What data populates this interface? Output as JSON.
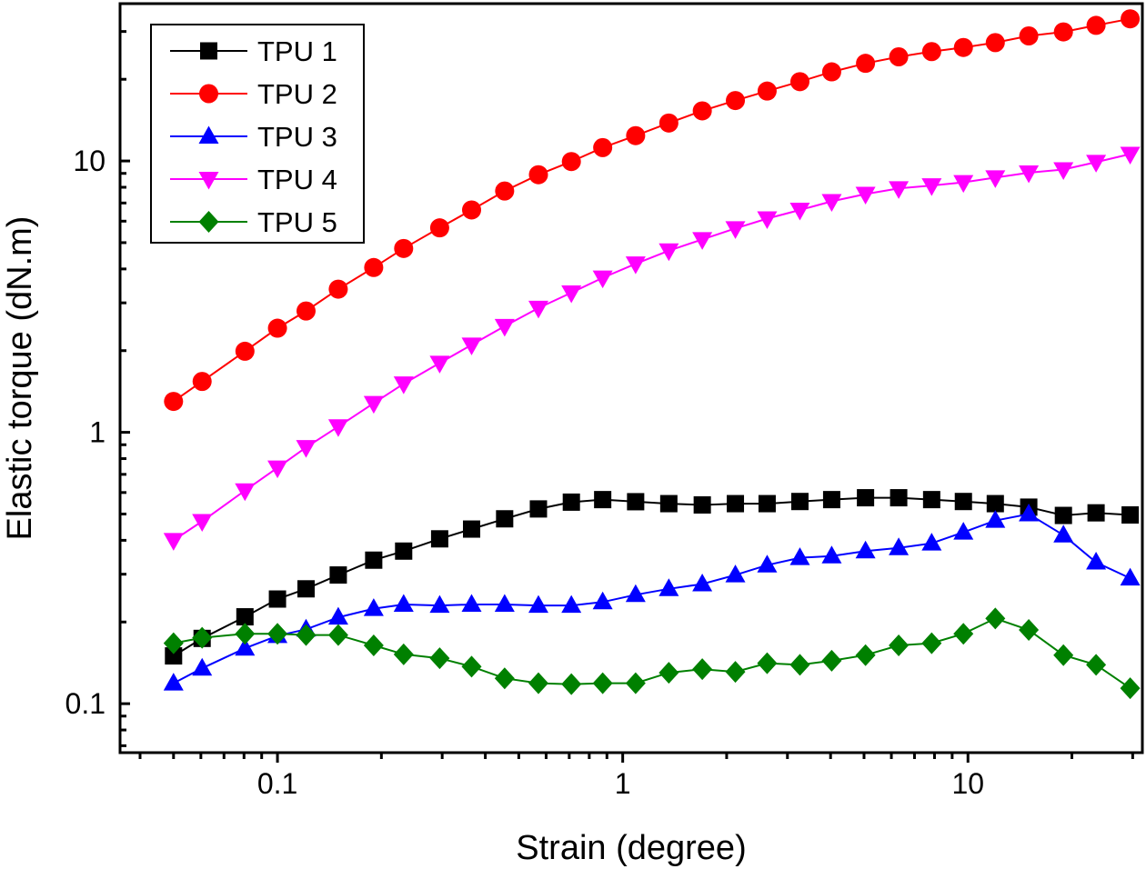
{
  "chart_data": {
    "type": "line",
    "title": "",
    "xlabel": "Strain (degree)",
    "ylabel": "Elastic torque (dN.m)",
    "xscale": "log",
    "yscale": "log",
    "xlim": [
      0.035,
      32
    ],
    "ylim": [
      0.066,
      38
    ],
    "x_ticks": [
      0.1,
      1,
      10
    ],
    "x_tick_labels": [
      "0.1",
      "1",
      "10"
    ],
    "y_ticks": [
      0.1,
      1,
      10
    ],
    "y_tick_labels": [
      "0.1",
      "1",
      "10"
    ],
    "legend_position": "top-left",
    "x": [
      0.05,
      0.0605,
      0.0805,
      0.1,
      0.121,
      0.15,
      0.19,
      0.232,
      0.295,
      0.365,
      0.455,
      0.57,
      0.71,
      0.875,
      1.09,
      1.36,
      1.7,
      2.12,
      2.62,
      3.26,
      4.03,
      5.05,
      6.3,
      7.85,
      9.7,
      12,
      15,
      18.9,
      23.5,
      29.5
    ],
    "series": [
      {
        "name": "TPU 1",
        "color": "#000000",
        "marker": "square",
        "values": [
          0.15,
          0.174,
          0.209,
          0.243,
          0.265,
          0.298,
          0.338,
          0.365,
          0.405,
          0.44,
          0.48,
          0.522,
          0.553,
          0.565,
          0.555,
          0.546,
          0.54,
          0.546,
          0.546,
          0.556,
          0.565,
          0.574,
          0.574,
          0.565,
          0.556,
          0.546,
          0.53,
          0.494,
          0.505,
          0.496
        ]
      },
      {
        "name": "TPU 2",
        "color": "#ff0000",
        "marker": "circle",
        "values": [
          1.3,
          1.54,
          1.99,
          2.42,
          2.8,
          3.37,
          4.05,
          4.76,
          5.67,
          6.6,
          7.75,
          8.9,
          9.95,
          11.2,
          12.4,
          13.8,
          15.3,
          16.7,
          18.1,
          19.6,
          21.3,
          22.9,
          24.2,
          25.3,
          26.2,
          27.3,
          28.9,
          29.9,
          31.6,
          33.4
        ]
      },
      {
        "name": "TPU 3",
        "color": "#0000ff",
        "marker": "triangle-up",
        "values": [
          0.119,
          0.135,
          0.16,
          0.178,
          0.188,
          0.208,
          0.224,
          0.232,
          0.23,
          0.232,
          0.232,
          0.23,
          0.23,
          0.237,
          0.252,
          0.265,
          0.276,
          0.298,
          0.324,
          0.345,
          0.35,
          0.365,
          0.375,
          0.39,
          0.428,
          0.473,
          0.5,
          0.418,
          0.332,
          0.29
        ]
      },
      {
        "name": "TPU 4",
        "color": "#ff00ff",
        "marker": "triangle-down",
        "values": [
          0.4,
          0.47,
          0.61,
          0.74,
          0.88,
          1.05,
          1.28,
          1.51,
          1.8,
          2.1,
          2.46,
          2.87,
          3.27,
          3.71,
          4.18,
          4.67,
          5.14,
          5.64,
          6.13,
          6.6,
          7.1,
          7.55,
          7.92,
          8.12,
          8.34,
          8.68,
          9.05,
          9.3,
          9.9,
          10.6
        ]
      },
      {
        "name": "TPU 5",
        "color": "#008000",
        "marker": "diamond",
        "values": [
          0.167,
          0.175,
          0.181,
          0.181,
          0.179,
          0.179,
          0.164,
          0.152,
          0.147,
          0.137,
          0.124,
          0.119,
          0.118,
          0.119,
          0.119,
          0.13,
          0.134,
          0.131,
          0.141,
          0.139,
          0.144,
          0.151,
          0.164,
          0.167,
          0.181,
          0.206,
          0.187,
          0.151,
          0.139,
          0.114
        ]
      }
    ]
  }
}
